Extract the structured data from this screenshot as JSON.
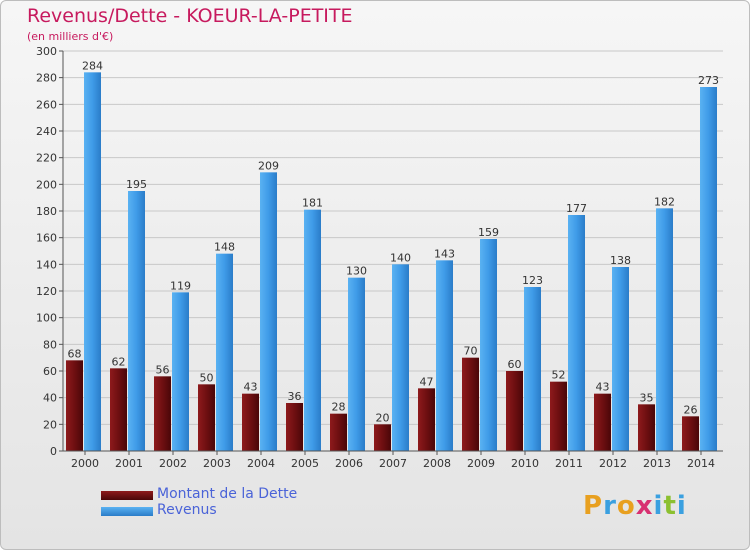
{
  "title": "Revenus/Dette - KOEUR-LA-PETITE",
  "subtitle": "(en milliers d'€)",
  "chart_data": {
    "type": "bar",
    "categories": [
      "2000",
      "2001",
      "2002",
      "2003",
      "2004",
      "2005",
      "2006",
      "2007",
      "2008",
      "2009",
      "2010",
      "2011",
      "2012",
      "2013",
      "2014"
    ],
    "series": [
      {
        "name": "Montant de la Dette",
        "values": [
          68,
          62,
          56,
          50,
          43,
          36,
          28,
          20,
          47,
          70,
          60,
          52,
          43,
          35,
          26
        ],
        "color": "#7a1214"
      },
      {
        "name": "Revenus",
        "values": [
          284,
          195,
          119,
          148,
          209,
          181,
          130,
          140,
          143,
          159,
          123,
          177,
          138,
          182,
          273
        ],
        "color": "#3f9be8"
      }
    ],
    "ylim": [
      0,
      300
    ],
    "yticks": [
      0,
      20,
      40,
      60,
      80,
      100,
      120,
      140,
      160,
      180,
      200,
      220,
      240,
      260,
      280,
      300
    ],
    "grid": true,
    "legend": "bottom-left"
  },
  "logo": {
    "letters": [
      "P",
      "r",
      "o",
      "x",
      "i",
      "t",
      "i"
    ],
    "colors": [
      "#e8a020",
      "#3aa0e0",
      "#e8a020",
      "#d83070",
      "#3aa0e0",
      "#8cc030",
      "#3aa0e0"
    ]
  }
}
